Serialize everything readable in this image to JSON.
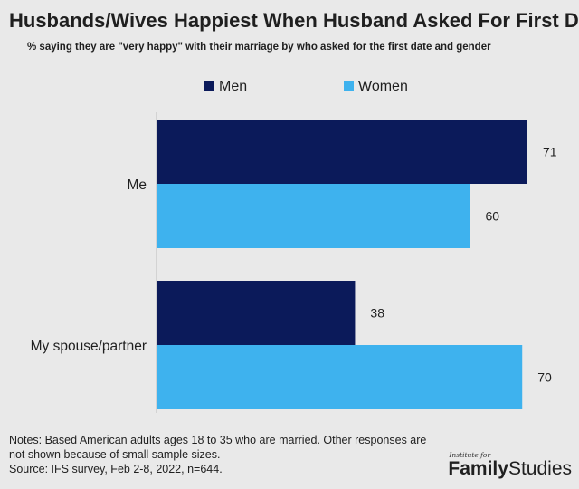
{
  "title": "Husbands/Wives Happiest When Husband Asked For First Date",
  "subtitle": "% saying they are \"very happy\" with their marriage by who asked for the first date and gender",
  "notes": {
    "line1": "Notes: Based American adults ages 18 to 35 who are married. Other responses are",
    "line2": "not shown because of small sample sizes.",
    "source": "Source: IFS survey, Feb 2-8, 2022, n=644."
  },
  "logo": {
    "small": "Institute for",
    "word1": "Family",
    "word2": "Studies"
  },
  "colors": {
    "men": "#0b1a5a",
    "women": "#3eb2ee",
    "background": "#e9e9e9",
    "axis": "#bdbdbd",
    "text": "#1f1f1f"
  },
  "chart_data": {
    "type": "bar",
    "orientation": "horizontal",
    "title": "Husbands/Wives Happiest When Husband Asked For First Date",
    "subtitle": "% saying they are \"very happy\" with their marriage by who asked for the first date and gender",
    "categories": [
      "Me",
      "My spouse/partner"
    ],
    "series": [
      {
        "name": "Men",
        "values": [
          71,
          38
        ]
      },
      {
        "name": "Women",
        "values": [
          60,
          70
        ]
      }
    ],
    "xlim": [
      0,
      71
    ],
    "data_labels": true,
    "legend": "top",
    "grid": false
  }
}
